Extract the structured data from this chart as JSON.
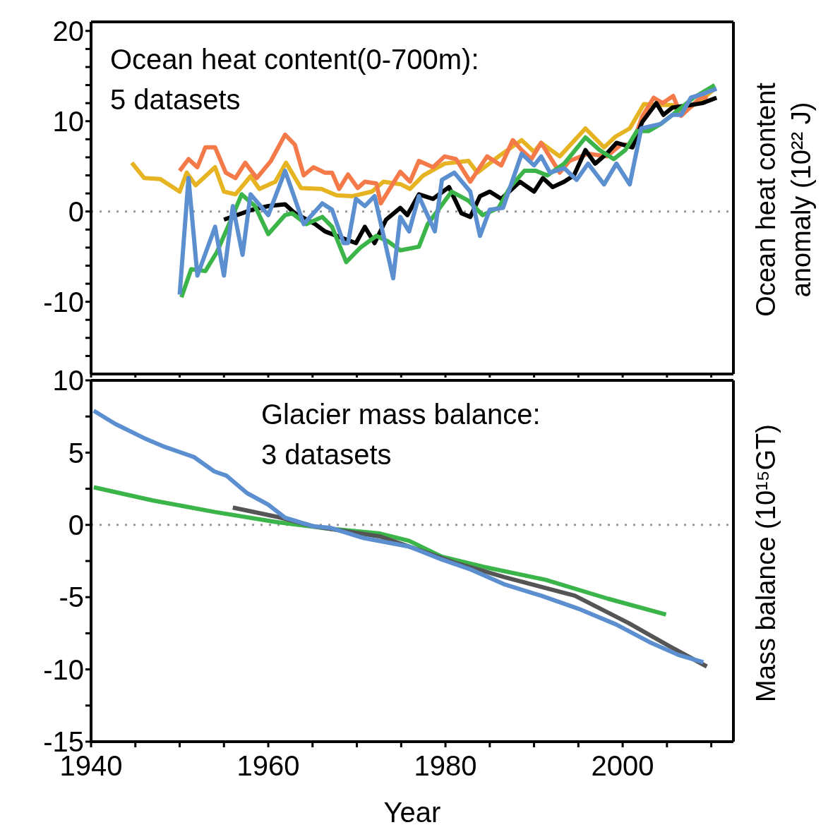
{
  "chart_data": [
    {
      "type": "line",
      "title": "Ocean heat content(0-700m):\n5 datasets",
      "ylabel": "Ocean heat content anomaly (10²² J)",
      "xlim": [
        1940,
        2012.5
      ],
      "ylim": [
        -18,
        21
      ],
      "xticks": [
        1940,
        {
          "value": 1945,
          "label": null
        },
        {
          "value": 1950,
          "label": null
        },
        {
          "value": 1955,
          "label": null
        },
        1960,
        {
          "value": 1965,
          "label": null
        },
        {
          "value": 1970,
          "label": null
        },
        {
          "value": 1975,
          "label": null
        },
        1980,
        {
          "value": 1985,
          "label": null
        },
        {
          "value": 1990,
          "label": null
        },
        {
          "value": 1995,
          "label": null
        },
        2000,
        {
          "value": 2005,
          "label": null
        },
        {
          "value": 2010,
          "label": null
        }
      ],
      "yticks": [
        {
          "value": -16,
          "label": null
        },
        {
          "value": -14,
          "label": null
        },
        {
          "value": -12,
          "label": null
        },
        -10,
        {
          "value": -8,
          "label": null
        },
        {
          "value": -6,
          "label": null
        },
        {
          "value": -4,
          "label": null
        },
        {
          "value": -2,
          "label": null
        },
        0,
        {
          "value": 2,
          "label": null
        },
        {
          "value": 4,
          "label": null
        },
        {
          "value": 6,
          "label": null
        },
        {
          "value": 8,
          "label": null
        },
        10,
        {
          "value": 12,
          "label": null
        },
        {
          "value": 14,
          "label": null
        },
        {
          "value": 16,
          "label": null
        },
        {
          "value": 18,
          "label": null
        },
        20
      ],
      "tick_labels": "y",
      "marker": "none",
      "ref_lines": [
        {
          "axis": "y",
          "value": 0,
          "color": "#999999",
          "line_style": "dotted"
        }
      ],
      "series": [
        {
          "color": "#e6b422",
          "x": [
            1944.6,
            1946,
            1947.8,
            1950,
            1950.8,
            1951.8,
            1954,
            1955,
            1956.3,
            1958,
            1959,
            1960.8,
            1962,
            1963.7,
            1966,
            1967.7,
            1969.5,
            1971.7,
            1973,
            1975,
            1976,
            1977.5,
            1979.9,
            1982.6,
            1983.6,
            1986,
            1988.6,
            1990,
            1990.8,
            1992.9,
            1995.8,
            1997.9,
            1999.2,
            2000.8,
            2002.4,
            2004,
            2005.6,
            2006.6,
            2008.8,
            2010.4
          ],
          "values": [
            5.4,
            3.7,
            3.6,
            2.2,
            4.3,
            2.9,
            4.9,
            2.2,
            1.9,
            3.9,
            2.5,
            3.3,
            5.4,
            2.6,
            2.5,
            1.8,
            1.7,
            2.2,
            3.3,
            3.0,
            2.5,
            4.0,
            5.3,
            5.6,
            4.3,
            6.1,
            7.9,
            6.6,
            7.6,
            6.1,
            9.2,
            7.1,
            8.3,
            9.2,
            11.9,
            11.8,
            11.8,
            10.9,
            12.3,
            13.6
          ]
        },
        {
          "color": "#f47a4a",
          "x": [
            1950,
            1951,
            1952,
            1952.9,
            1954,
            1955.2,
            1956.3,
            1957.4,
            1958.7,
            1960.3,
            1961.9,
            1963,
            1964,
            1965.1,
            1966.4,
            1967.2,
            1968,
            1969,
            1970.1,
            1970.9,
            1972.2,
            1972.7,
            1974.9,
            1976,
            1977,
            1978.6,
            1979.9,
            1981.2,
            1982.8,
            1984.7,
            1986.3,
            1987.6,
            1988.6,
            1989.7,
            1990.8,
            1992.9,
            1994,
            1996.1,
            1998.2,
            1999.8,
            2001.1,
            2002.2,
            2003.5,
            2004.5,
            2005.7,
            2006.6,
            2008.8,
            2009.6
          ],
          "values": [
            4.5,
            5.8,
            4.9,
            7.1,
            7.1,
            4.3,
            3.7,
            5.4,
            3.7,
            5.6,
            8.5,
            7.4,
            4.0,
            4.9,
            4.3,
            4.3,
            2.5,
            4.1,
            2.6,
            3.3,
            3.1,
            0.9,
            4.4,
            3.3,
            5.6,
            4.9,
            6.1,
            5.8,
            3.3,
            6.1,
            5.1,
            7.9,
            6.8,
            5.8,
            7.6,
            4.3,
            5.6,
            6.4,
            6.1,
            7.4,
            7.4,
            10.5,
            12.6,
            12.0,
            12.8,
            10.6,
            12.6,
            12.6
          ]
        },
        {
          "color": "#000000",
          "x": [
            1955,
            1958.2,
            1960,
            1961.9,
            1963,
            1965.3,
            1966.4,
            1968.5,
            1969.9,
            1970.9,
            1972,
            1973.3,
            1974.9,
            1975.7,
            1977,
            1978.6,
            1980.4,
            1981.8,
            1982.8,
            1983.9,
            1985,
            1986.3,
            1988.4,
            1990,
            1991,
            1992.1,
            1993.4,
            1994.5,
            1995.8,
            1996.9,
            1998.2,
            1999.3,
            2001.1,
            2002.2,
            2003.8,
            2004.6,
            2005.6,
            2007.7,
            2009,
            2010.6
          ],
          "values": [
            -0.9,
            0.2,
            0.6,
            0.8,
            -0.2,
            -1.4,
            -2.2,
            -3.0,
            -3.5,
            -1.7,
            -3.5,
            -0.9,
            0.4,
            -0.4,
            1.9,
            1.4,
            2.7,
            -0.2,
            -0.6,
            1.7,
            2.2,
            1.4,
            3.3,
            2.2,
            3.7,
            2.7,
            3.3,
            4.0,
            6.8,
            5.3,
            6.4,
            7.6,
            7.1,
            9.9,
            12.0,
            10.7,
            11.5,
            11.8,
            12.0,
            12.6
          ]
        },
        {
          "color": "#3bb54a",
          "x": [
            1950.2,
            1951.3,
            1952.9,
            1954.2,
            1955.8,
            1957,
            1958.5,
            1960,
            1961.9,
            1962.7,
            1964.3,
            1966.1,
            1967.2,
            1968.8,
            1970.4,
            1972.2,
            1973.5,
            1974.9,
            1977,
            1978,
            1980.7,
            1982.6,
            1984.2,
            1986,
            1987.3,
            1988.9,
            1990.2,
            1991.5,
            1993.4,
            1995.8,
            1997.4,
            1999,
            2000.3,
            2001.6,
            2002.9,
            2004.3,
            2005.6,
            2008,
            2010.4
          ],
          "values": [
            -9.5,
            -6.4,
            -6.6,
            -4.5,
            -0.9,
            1.9,
            0.6,
            -2.5,
            -0.4,
            -0.2,
            -1.4,
            -0.6,
            -1.7,
            -5.6,
            -4.0,
            -2.7,
            -3.3,
            -4.3,
            -3.9,
            -1.4,
            2.2,
            1.2,
            -0.4,
            0.4,
            2.7,
            4.5,
            4.5,
            4.0,
            5.3,
            8.2,
            6.8,
            5.8,
            6.8,
            8.9,
            8.9,
            9.7,
            10.7,
            12.6,
            14.0
          ]
        },
        {
          "color": "#5b8fd0",
          "x": [
            1950,
            1951,
            1952,
            1954,
            1955,
            1956,
            1957.1,
            1958,
            1960,
            1961.9,
            1964,
            1966.1,
            1967.2,
            1968.5,
            1969,
            1969.9,
            1970.9,
            1972,
            1974.1,
            1974.9,
            1975.9,
            1977,
            1978.8,
            1979.6,
            1981,
            1982.8,
            1983.9,
            1985,
            1986.5,
            1988.6,
            1990,
            1990.8,
            1991.8,
            1993.4,
            1994.8,
            1996.1,
            1997.9,
            1999.3,
            2000.8,
            2002.1,
            2004.3,
            2005.6,
            2006.6,
            2007.7,
            2009.3,
            2010.6
          ],
          "values": [
            -9.2,
            3.7,
            -7.1,
            -1.7,
            -7.1,
            0.6,
            -4.8,
            1.9,
            -0.4,
            4.5,
            -1.4,
            0.9,
            0.2,
            -3.5,
            -3.5,
            1.4,
            0.6,
            1.7,
            -7.4,
            -0.6,
            -2.2,
            1.7,
            -2.2,
            3.5,
            4.3,
            2.2,
            -2.7,
            0.2,
            0.4,
            6.4,
            5.1,
            6.1,
            4.3,
            4.8,
            3.5,
            5.3,
            3.0,
            5.3,
            3.0,
            9.2,
            9.7,
            10.7,
            10.7,
            12.6,
            13.1,
            13.6
          ]
        }
      ]
    },
    {
      "type": "line",
      "title": "Glacier mass balance:\n3 datasets",
      "ylabel": "Mass balance (10¹⁵GT)",
      "xlabel": "Year",
      "xlim": [
        1940,
        2012.5
      ],
      "ylim": [
        -15,
        10
      ],
      "xticks": [
        1940,
        {
          "value": 1945,
          "label": null
        },
        {
          "value": 1950,
          "label": null
        },
        {
          "value": 1955,
          "label": null
        },
        1960,
        {
          "value": 1965,
          "label": null
        },
        {
          "value": 1970,
          "label": null
        },
        {
          "value": 1975,
          "label": null
        },
        1980,
        {
          "value": 1985,
          "label": null
        },
        {
          "value": 1990,
          "label": null
        },
        {
          "value": 1995,
          "label": null
        },
        2000,
        {
          "value": 2005,
          "label": null
        },
        {
          "value": 2010,
          "label": null
        }
      ],
      "yticks": [
        -15,
        {
          "value": -12.5,
          "label": null
        },
        -10,
        {
          "value": -7.5,
          "label": null
        },
        -5,
        {
          "value": -2.5,
          "label": null
        },
        0,
        {
          "value": 2.5,
          "label": null
        },
        5,
        {
          "value": 7.5,
          "label": null
        },
        10
      ],
      "marker": "none",
      "ref_lines": [
        {
          "axis": "y",
          "value": 0,
          "color": "#999999",
          "line_style": "dotted"
        }
      ],
      "series": [
        {
          "color": "#3bb54a",
          "x": [
            1940.3,
            1946.9,
            1953.9,
            1960.9,
            1966,
            1972.6,
            1975.9,
            1979.6,
            1984.3,
            1991.3,
            1998.3,
            2004.9
          ],
          "values": [
            2.6,
            1.7,
            0.9,
            0.2,
            -0.2,
            -0.6,
            -1.1,
            -2.2,
            -2.9,
            -3.8,
            -5.1,
            -6.2
          ]
        },
        {
          "color": "#555555",
          "x": [
            1956,
            1961.4,
            1965.1,
            1972.6,
            1977.3,
            1981,
            1986.6,
            1994.6,
            2000.7,
            2005.3,
            2009.5
          ],
          "values": [
            1.2,
            0.5,
            -0.1,
            -0.8,
            -1.8,
            -2.6,
            -3.6,
            -4.9,
            -6.8,
            -8.4,
            -9.8
          ]
        },
        {
          "color": "#5b8fd0",
          "x": [
            1940.3,
            1942.7,
            1946,
            1948.3,
            1951.6,
            1953.9,
            1955.3,
            1957.6,
            1960,
            1961.9,
            1965.1,
            1967,
            1970.7,
            1975.9,
            1979.6,
            1982.9,
            1986.6,
            1990.8,
            1995,
            1999.3,
            2003,
            2006.3,
            2009.1
          ],
          "values": [
            7.9,
            7.0,
            6.0,
            5.4,
            4.7,
            3.7,
            3.4,
            2.2,
            1.4,
            0.5,
            -0.1,
            -0.2,
            -0.9,
            -1.5,
            -2.4,
            -3.1,
            -4.1,
            -4.9,
            -5.8,
            -6.9,
            -8.1,
            -9.0,
            -9.5
          ]
        }
      ]
    }
  ]
}
